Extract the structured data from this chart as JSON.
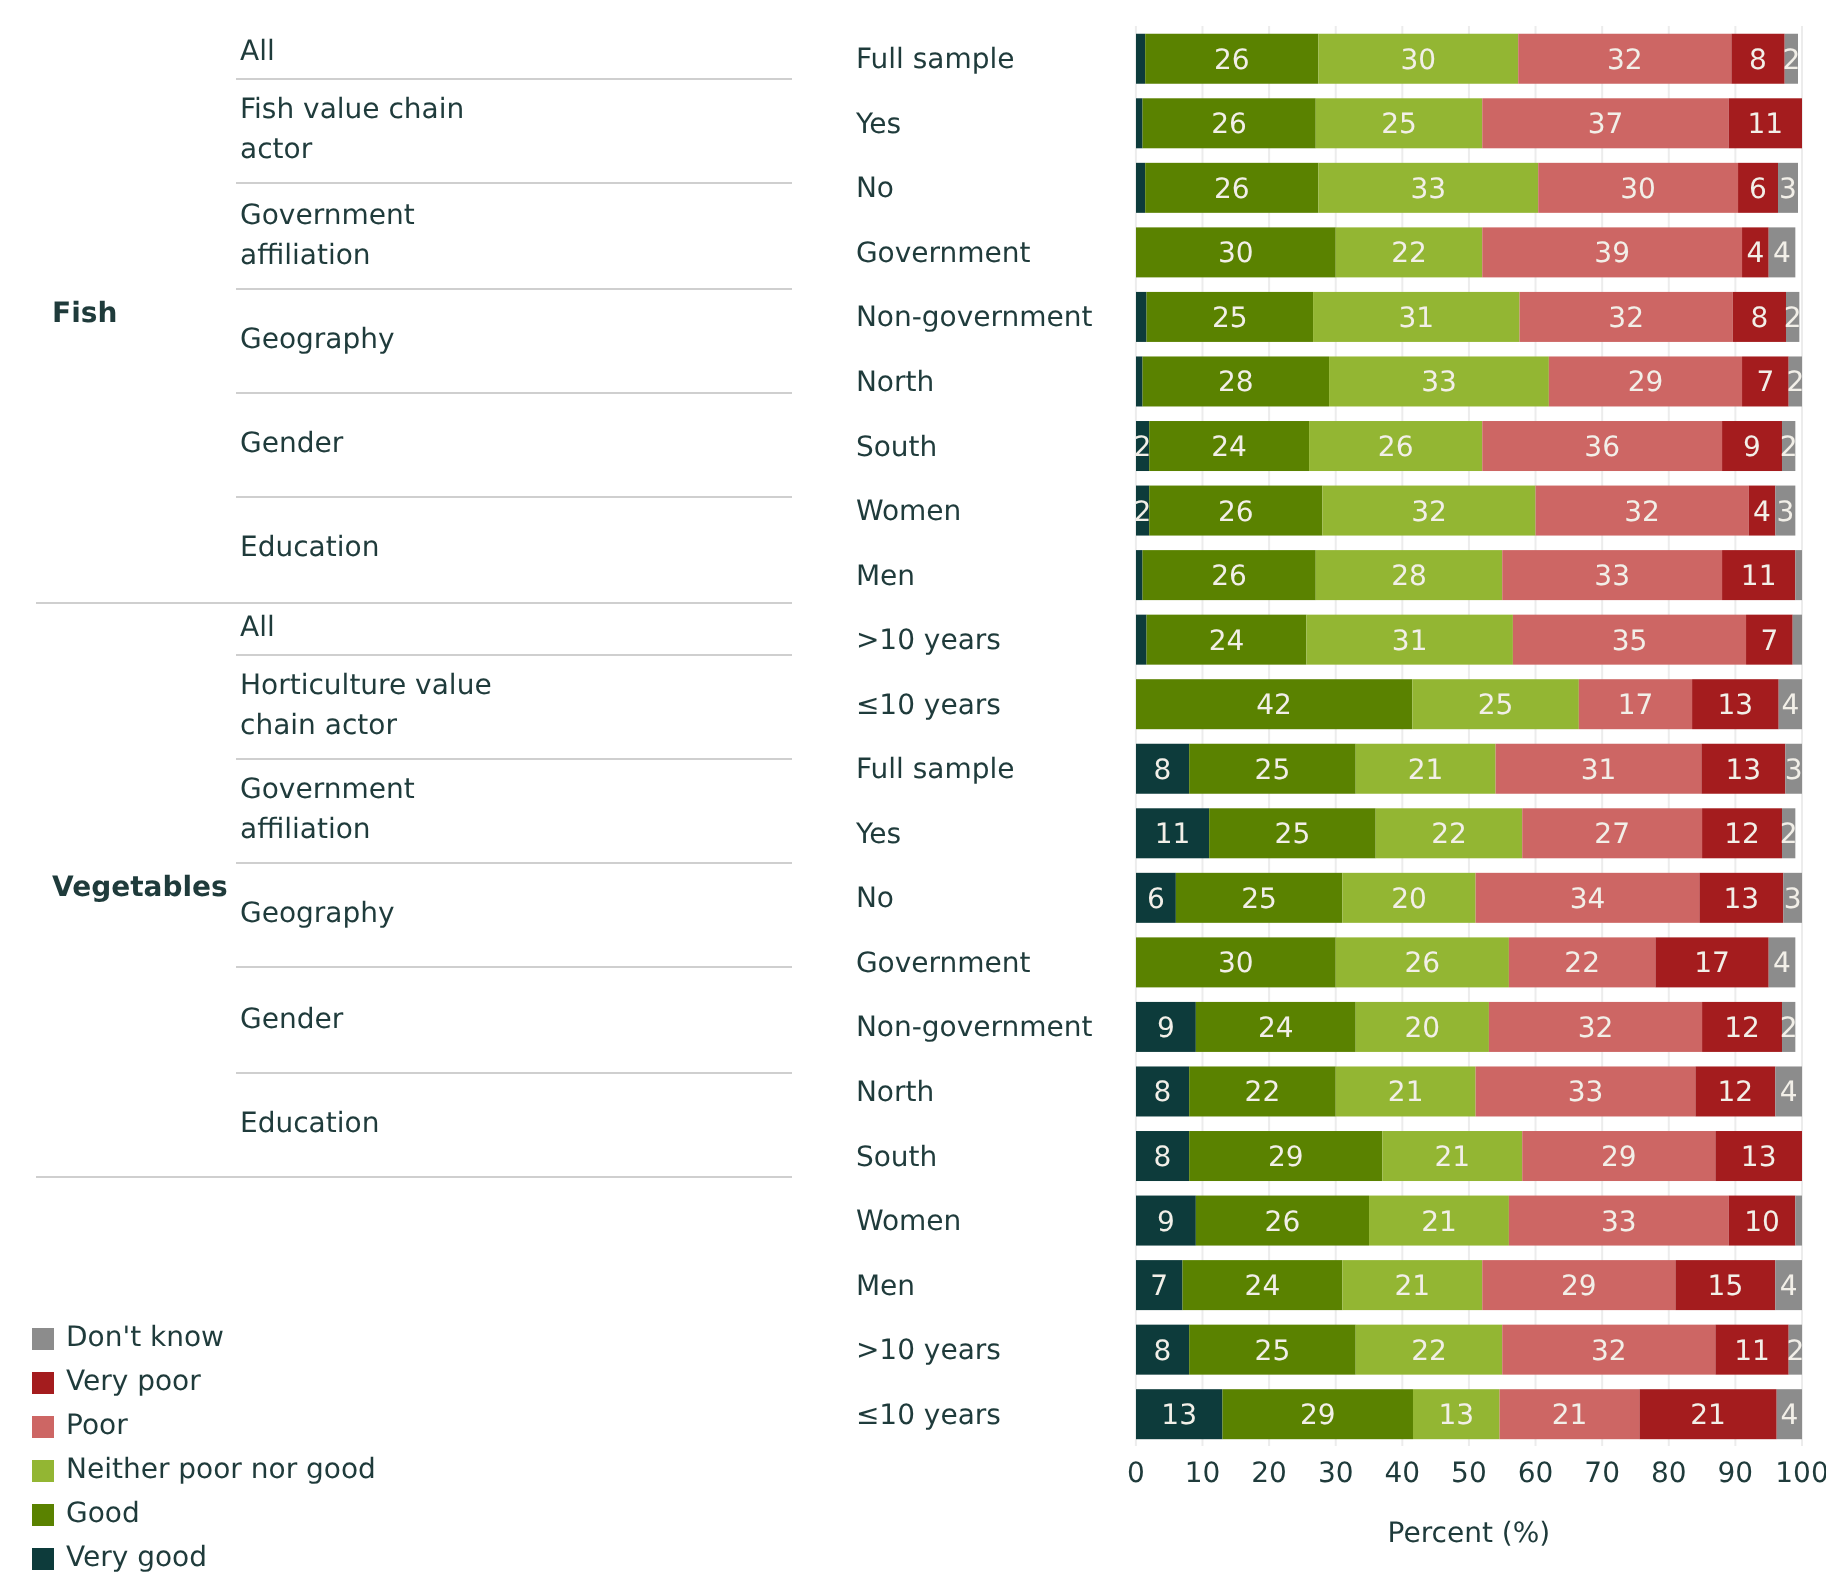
{
  "chart_data": {
    "type": "bar",
    "orientation": "horizontal",
    "stacked": true,
    "xlabel": "Percent (%)",
    "xlim": [
      0,
      100
    ],
    "xticks": [
      0,
      10,
      20,
      30,
      40,
      50,
      60,
      70,
      80,
      90,
      100
    ],
    "grid": "x",
    "legend": "bottom left",
    "categories": [
      "Full sample",
      "Yes",
      "No",
      "Government",
      "Non-government",
      "North",
      "South",
      "Women",
      "Men",
      ">10 years",
      "≤10 years",
      "Full sample",
      "Yes",
      "No",
      "Government",
      "Non-government",
      "North",
      "South",
      "Women",
      "Men",
      ">10 years",
      "≤10 years"
    ],
    "annotations": [
      "Fish",
      "All",
      "Fish value chain actor",
      "Government affiliation",
      "Geography",
      "Gender",
      "Education",
      "Vegetables",
      "All",
      "Horticulture value chain actor",
      "Government affiliation",
      "Geography",
      "Gender",
      "Education"
    ],
    "series": [
      {
        "name": "Very good",
        "color": "#0d3b3b",
        "values": [
          1.4,
          1,
          1.4,
          null,
          1.6,
          1,
          2,
          2,
          1,
          1.6,
          null,
          8,
          11,
          6,
          null,
          9,
          8,
          8,
          9,
          7,
          8,
          13
        ],
        "value_labels": [
          null,
          null,
          null,
          null,
          null,
          null,
          "2",
          "2",
          null,
          null,
          null,
          "8",
          "11",
          "6",
          null,
          "9",
          "8",
          "8",
          "9",
          "7",
          "8",
          "13"
        ]
      },
      {
        "name": "Good",
        "color": "#5a8200",
        "values": [
          26,
          26,
          26,
          30,
          25,
          28,
          24,
          26,
          26,
          24,
          41.5,
          25,
          25,
          25,
          30,
          24,
          22,
          29,
          26,
          24,
          25,
          28.6
        ],
        "value_labels": [
          "26",
          "26",
          "26",
          "30",
          "25",
          "28",
          "24",
          "26",
          "26",
          "24",
          "42",
          "25",
          "25",
          "25",
          "30",
          "24",
          "22",
          "29",
          "26",
          "24",
          "25",
          "29"
        ]
      },
      {
        "name": "Neither poor nor good",
        "color": "#93b633",
        "values": [
          30,
          25,
          33,
          22,
          31,
          33,
          26,
          32,
          28,
          31,
          25,
          21,
          22,
          20,
          26,
          20,
          21,
          21,
          21,
          21,
          22,
          13
        ],
        "value_labels": [
          "30",
          "25",
          "33",
          "22",
          "31",
          "33",
          "26",
          "32",
          "28",
          "31",
          "25",
          "21",
          "22",
          "20",
          "26",
          "20",
          "21",
          "21",
          "21",
          "21",
          "22",
          "13"
        ]
      },
      {
        "name": "Poor",
        "color": "#cd6664",
        "values": [
          32,
          37,
          30,
          39,
          32,
          29,
          36,
          32,
          33,
          35,
          17,
          30.9,
          27,
          33.6,
          22,
          32,
          33,
          29,
          33,
          29,
          32,
          21
        ],
        "value_labels": [
          "32",
          "37",
          "30",
          "39",
          "32",
          "29",
          "36",
          "32",
          "33",
          "35",
          "17",
          "31",
          "27",
          "34",
          "22",
          "32",
          "33",
          "29",
          "33",
          "29",
          "32",
          "21"
        ]
      },
      {
        "name": "Very poor",
        "color": "#a41c1e",
        "values": [
          8,
          11,
          6,
          4,
          8,
          7,
          9,
          4,
          11,
          7,
          13,
          12.6,
          12,
          12.6,
          17,
          12,
          12,
          13,
          10,
          15,
          11,
          20.6
        ],
        "value_labels": [
          "8",
          "11",
          "6",
          "4",
          "8",
          "7",
          "9",
          "4",
          "11",
          "7",
          "13",
          "13",
          "12",
          "13",
          "17",
          "12",
          "12",
          "13",
          "10",
          "15",
          "11",
          "21"
        ]
      },
      {
        "name": "Don't know",
        "color": "#8c8c8c",
        "values": [
          2,
          null,
          3,
          4,
          2,
          2,
          2,
          3,
          1,
          1.4,
          3.5,
          2.5,
          2,
          2.8,
          4,
          2,
          4,
          0.4,
          1,
          4,
          2,
          3.8
        ],
        "value_labels": [
          "2",
          null,
          "3",
          "4",
          "2",
          "2",
          "2",
          "3",
          null,
          null,
          "4",
          "3",
          "2",
          "3",
          "4",
          "2",
          "4",
          null,
          null,
          "4",
          "2",
          "4"
        ]
      }
    ]
  }
}
